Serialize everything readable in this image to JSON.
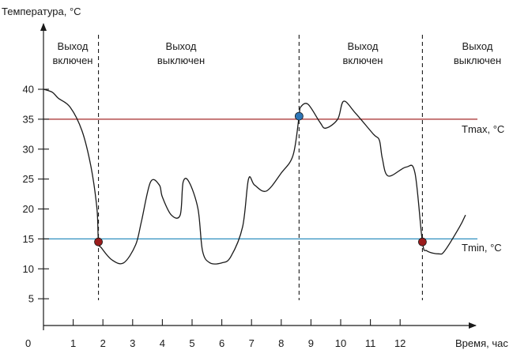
{
  "axes": {
    "y_title": "Температура, °С",
    "x_title": "Время, час",
    "origin_label": "0",
    "x_ticks": [
      "1",
      "2",
      "3",
      "4",
      "5",
      "6",
      "7",
      "8",
      "9",
      "10",
      "11",
      "12"
    ],
    "y_ticks": [
      "5",
      "10",
      "15",
      "20",
      "25",
      "30",
      "35",
      "40"
    ],
    "x_range": [
      0,
      14.5
    ],
    "y_range": [
      0,
      45
    ]
  },
  "thresholds": {
    "tmax": {
      "value": 35,
      "label": "Tmax, °C",
      "color": "#a52a2a"
    },
    "tmin": {
      "value": 15,
      "label": "Tmin, °C",
      "color": "#2f8fbf"
    }
  },
  "phases": [
    {
      "label_line1": "Выход",
      "label_line2": "включен",
      "color": "#a52a2a"
    },
    {
      "label_line1": "Выход",
      "label_line2": "выключен",
      "color": "#2f8fbf"
    },
    {
      "label_line1": "Выход",
      "label_line2": "включен",
      "color": "#a52a2a"
    },
    {
      "label_line1": "Выход",
      "label_line2": "выключен",
      "color": "#2f8fbf"
    }
  ],
  "switch_times": [
    1.85,
    8.6,
    12.75
  ],
  "markers": [
    {
      "x": 1.85,
      "y": 14.5,
      "kind": "switch-on",
      "color": "#9b1c1c"
    },
    {
      "x": 8.6,
      "y": 35.5,
      "kind": "switch-off",
      "color": "#2e75b6"
    },
    {
      "x": 12.75,
      "y": 14.5,
      "kind": "switch-on",
      "color": "#9b1c1c"
    }
  ],
  "chart_data": {
    "type": "line",
    "series": [
      {
        "x": [
          0.0,
          0.3,
          0.5,
          0.9,
          1.3,
          1.6,
          1.8,
          1.85,
          1.95,
          2.3,
          2.7,
          3.1,
          3.3,
          3.6,
          3.9,
          4.0,
          4.3,
          4.6,
          4.7,
          4.9,
          5.2,
          5.35,
          5.6,
          6.0,
          6.3,
          6.7,
          6.9,
          7.1,
          7.5,
          8.0,
          8.4,
          8.6,
          8.65,
          8.9,
          9.3,
          9.5,
          9.9,
          10.1,
          10.5,
          11.1,
          11.3,
          11.4,
          11.6,
          12.2,
          12.5,
          12.75,
          12.9,
          13.3,
          13.5,
          14.0,
          14.2
        ],
        "y": [
          40,
          39.5,
          38.5,
          37,
          33,
          27,
          20,
          14.5,
          13.5,
          11.5,
          11,
          14,
          18,
          24.5,
          24,
          22,
          19,
          19,
          24.5,
          24.5,
          20,
          13,
          11,
          11,
          12,
          17,
          25,
          24,
          23,
          26,
          29,
          35.5,
          37,
          37.5,
          34.5,
          33.5,
          35,
          38,
          36,
          32.5,
          31.5,
          28.5,
          25.5,
          27,
          26,
          14.5,
          13,
          12.5,
          13,
          17,
          19
        ]
      }
    ],
    "xlabel": "Время, час",
    "ylabel": "Температура, °С"
  }
}
